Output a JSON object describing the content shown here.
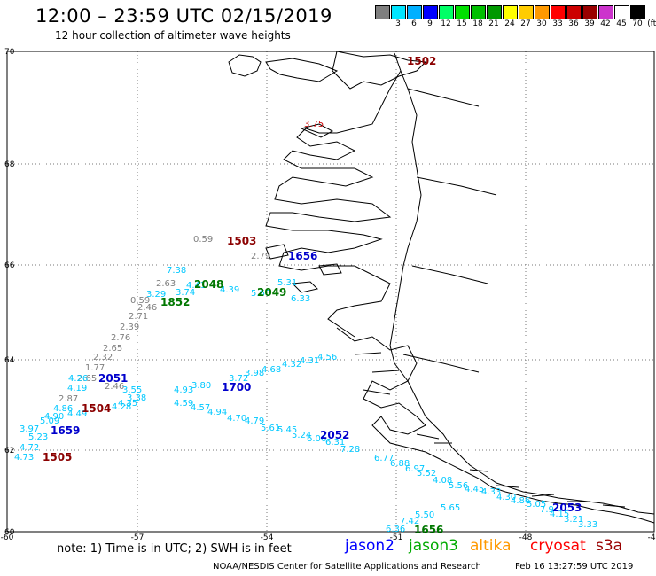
{
  "header": {
    "title": "12:00 – 23:59 UTC 02/15/2019",
    "subtitle": "12 hour collection of altimeter wave heights"
  },
  "color_scale": {
    "unit": "(ft)",
    "swatches": [
      {
        "label": "",
        "color": "#7f7f7f"
      },
      {
        "label": "3",
        "color": "#00e5ff"
      },
      {
        "label": "6",
        "color": "#00b0ff"
      },
      {
        "label": "9",
        "color": "#0000ff"
      },
      {
        "label": "12",
        "color": "#00ff66"
      },
      {
        "label": "15",
        "color": "#00e000"
      },
      {
        "label": "18",
        "color": "#00c000"
      },
      {
        "label": "21",
        "color": "#009900"
      },
      {
        "label": "24",
        "color": "#ffff00"
      },
      {
        "label": "27",
        "color": "#ffcc00"
      },
      {
        "label": "30",
        "color": "#ff9900"
      },
      {
        "label": "33",
        "color": "#ff0000"
      },
      {
        "label": "36",
        "color": "#cc0000"
      },
      {
        "label": "39",
        "color": "#990000"
      },
      {
        "label": "42",
        "color": "#cc33cc"
      },
      {
        "label": "45",
        "color": "#ffffff"
      },
      {
        "label": "70",
        "color": "#000000"
      }
    ]
  },
  "map": {
    "lat_labels": [
      "70",
      "68",
      "66",
      "64",
      "62",
      "60"
    ],
    "lon_labels": [
      "-60",
      "-57",
      "-54",
      "-51",
      "-48",
      "-45"
    ],
    "time_labels": [
      {
        "text": "1502",
        "color": "#8b0000"
      },
      {
        "text": "1503",
        "color": "#8b0000"
      },
      {
        "text": "1656",
        "color": "#0000cc"
      },
      {
        "text": "2048",
        "color": "#007700"
      },
      {
        "text": "2049",
        "color": "#007700"
      },
      {
        "text": "1852",
        "color": "#007700"
      },
      {
        "text": "2051",
        "color": "#0000cc"
      },
      {
        "text": "1700",
        "color": "#0000cc"
      },
      {
        "text": "1504",
        "color": "#8b0000"
      },
      {
        "text": "1659",
        "color": "#0000cc"
      },
      {
        "text": "1505",
        "color": "#8b0000"
      },
      {
        "text": "2052",
        "color": "#0000cc"
      },
      {
        "text": "2053",
        "color": "#0000cc"
      },
      {
        "text": "1656",
        "color": "#007700"
      }
    ],
    "wave_values": [
      {
        "text": "3.75",
        "color": "#cc0000"
      },
      {
        "text": "0.59",
        "color": "#7f7f7f"
      },
      {
        "text": "2.79",
        "color": "#7f7f7f"
      },
      {
        "text": "7.38",
        "color": "#00c8ff"
      },
      {
        "text": "2.63",
        "color": "#7f7f7f"
      },
      {
        "text": "4.41",
        "color": "#00c8ff"
      },
      {
        "text": "5.31",
        "color": "#00c8ff"
      },
      {
        "text": "6.33",
        "color": "#00c8ff"
      },
      {
        "text": "3.29",
        "color": "#00c8ff"
      },
      {
        "text": "3.74",
        "color": "#00c8ff"
      },
      {
        "text": "4.39",
        "color": "#00c8ff"
      },
      {
        "text": "5.66",
        "color": "#00c8ff"
      },
      {
        "text": "0.59",
        "color": "#7f7f7f"
      },
      {
        "text": "2.46",
        "color": "#7f7f7f"
      },
      {
        "text": "2.71",
        "color": "#7f7f7f"
      },
      {
        "text": "2.39",
        "color": "#7f7f7f"
      },
      {
        "text": "2.76",
        "color": "#7f7f7f"
      },
      {
        "text": "2.65",
        "color": "#7f7f7f"
      },
      {
        "text": "2.32",
        "color": "#7f7f7f"
      },
      {
        "text": "1.77",
        "color": "#7f7f7f"
      },
      {
        "text": "2.65",
        "color": "#7f7f7f"
      },
      {
        "text": "4.26",
        "color": "#00c8ff"
      },
      {
        "text": "4.19",
        "color": "#00c8ff"
      },
      {
        "text": "2.46",
        "color": "#7f7f7f"
      },
      {
        "text": "3.55",
        "color": "#00c8ff"
      },
      {
        "text": "2.87",
        "color": "#7f7f7f"
      },
      {
        "text": "4.35",
        "color": "#00c8ff"
      },
      {
        "text": "3.38",
        "color": "#00c8ff"
      },
      {
        "text": "4.93",
        "color": "#00c8ff"
      },
      {
        "text": "3.80",
        "color": "#00c8ff"
      },
      {
        "text": "3.72",
        "color": "#00c8ff"
      },
      {
        "text": "3.98",
        "color": "#00c8ff"
      },
      {
        "text": "4.68",
        "color": "#00c8ff"
      },
      {
        "text": "4.32",
        "color": "#00c8ff"
      },
      {
        "text": "4.31",
        "color": "#00c8ff"
      },
      {
        "text": "4.56",
        "color": "#00c8ff"
      },
      {
        "text": "4.86",
        "color": "#00c8ff"
      },
      {
        "text": "4.28",
        "color": "#00c8ff"
      },
      {
        "text": "4.49",
        "color": "#00c8ff"
      },
      {
        "text": "4.90",
        "color": "#00c8ff"
      },
      {
        "text": "5.09",
        "color": "#00c8ff"
      },
      {
        "text": "3.97",
        "color": "#00c8ff"
      },
      {
        "text": "5.23",
        "color": "#00c8ff"
      },
      {
        "text": "4.72",
        "color": "#00c8ff"
      },
      {
        "text": "4.73",
        "color": "#00c8ff"
      },
      {
        "text": "4.59",
        "color": "#00c8ff"
      },
      {
        "text": "4.57",
        "color": "#00c8ff"
      },
      {
        "text": "4.94",
        "color": "#00c8ff"
      },
      {
        "text": "4.70",
        "color": "#00c8ff"
      },
      {
        "text": "4.79",
        "color": "#00c8ff"
      },
      {
        "text": "5.61",
        "color": "#00c8ff"
      },
      {
        "text": "5.45",
        "color": "#00c8ff"
      },
      {
        "text": "5.24",
        "color": "#00c8ff"
      },
      {
        "text": "6.06",
        "color": "#00c8ff"
      },
      {
        "text": "6.31",
        "color": "#00c8ff"
      },
      {
        "text": "7.28",
        "color": "#00c8ff"
      },
      {
        "text": "6.77",
        "color": "#00c8ff"
      },
      {
        "text": "6.88",
        "color": "#00c8ff"
      },
      {
        "text": "6.97",
        "color": "#00c8ff"
      },
      {
        "text": "5.52",
        "color": "#00c8ff"
      },
      {
        "text": "4.08",
        "color": "#00c8ff"
      },
      {
        "text": "5.56",
        "color": "#00c8ff"
      },
      {
        "text": "4.45",
        "color": "#00c8ff"
      },
      {
        "text": "4.33",
        "color": "#00c8ff"
      },
      {
        "text": "4.30",
        "color": "#00c8ff"
      },
      {
        "text": "4.86",
        "color": "#00c8ff"
      },
      {
        "text": "5.05",
        "color": "#00c8ff"
      },
      {
        "text": "5.65",
        "color": "#00c8ff"
      },
      {
        "text": "5.50",
        "color": "#00c8ff"
      },
      {
        "text": "7.42",
        "color": "#00c8ff"
      },
      {
        "text": "6.36",
        "color": "#00c8ff"
      },
      {
        "text": "7.9",
        "color": "#00c8ff"
      },
      {
        "text": "4.15",
        "color": "#00c8ff"
      },
      {
        "text": "3.21",
        "color": "#00c8ff"
      },
      {
        "text": "3.33",
        "color": "#00c8ff"
      },
      {
        "text": "3.05",
        "color": "#00c8ff"
      }
    ]
  },
  "footer": {
    "note": "note: 1) Time is in UTC; 2) SWH is in feet",
    "missions": [
      {
        "name": "jason2",
        "color": "#0000ff"
      },
      {
        "name": "jason3",
        "color": "#00aa00"
      },
      {
        "name": "altika",
        "color": "#ff9900"
      },
      {
        "name": "cryosat",
        "color": "#ff0000"
      },
      {
        "name": "s3a",
        "color": "#990000"
      }
    ],
    "credit": "NOAA/NESDIS Center for Satellite Applications and Research",
    "timestamp": "Feb 16 13:27:59 UTC 2019"
  }
}
